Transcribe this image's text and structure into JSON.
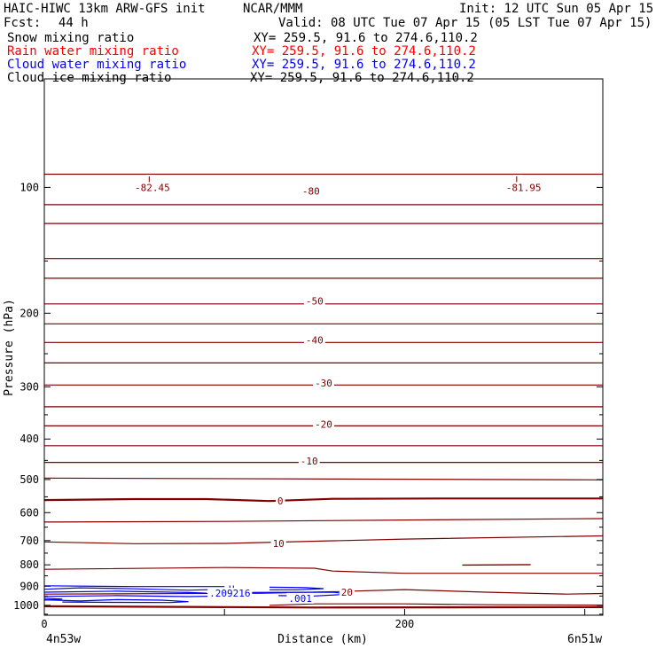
{
  "header": {
    "model": "HAIC-HIWC 13km ARW-GFS init",
    "center": "NCAR/MMM",
    "init": "Init: 12 UTC Sun 05 Apr 15",
    "fcst_label": "Fcst:",
    "fcst_value": "44 h",
    "valid": "Valid: 08 UTC Tue 07 Apr 15 (05 LST Tue 07 Apr 15)",
    "fields": [
      {
        "name": "Snow mixing ratio",
        "xy": "XY= 259.5, 91.6 to 274.6,110.2",
        "color": "#000000"
      },
      {
        "name": "Rain water mixing ratio",
        "xy": "XY= 259.5, 91.6 to 274.6,110.2",
        "color": "#ff0000"
      },
      {
        "name": "Cloud water mixing ratio",
        "xy": "XY= 259.5, 91.6 to 274.6,110.2",
        "color": "#0000ff"
      },
      {
        "name": "Cloud ice mixing ratio",
        "xy": "XY= 259.5, 91.6 to 274.6,110.2",
        "color": "#000000"
      }
    ]
  },
  "chart_data": {
    "type": "line",
    "xlabel": "Distance (km)",
    "ylabel": "Pressure (hPa)",
    "xlim": [
      0,
      310
    ],
    "ylim": [
      1056,
      55
    ],
    "y_scale": "log",
    "x_ticks": [
      0,
      100,
      200,
      300
    ],
    "x_tick_labels": [
      "0",
      "200"
    ],
    "x_tick_label_values": [
      0,
      200
    ],
    "y_ticks": [
      100,
      200,
      300,
      400,
      500,
      600,
      700,
      800,
      900,
      1000
    ],
    "x_endpoint_labels": {
      "left": "4n53w",
      "right": "6n51w"
    },
    "colors": {
      "temperature": "#800000",
      "cloud_water": "#0000ff",
      "axes": "#000000"
    },
    "temperature_contours": [
      {
        "level": -80,
        "points": [
          [
            0,
            93
          ],
          [
            310,
            93
          ]
        ]
      },
      {
        "level": -70,
        "points": [
          [
            0,
            110
          ],
          [
            310,
            110
          ]
        ]
      },
      {
        "level": -65,
        "points": [
          [
            0,
            122
          ],
          [
            310,
            122
          ]
        ]
      },
      {
        "level": -60,
        "points": [
          [
            0,
            148
          ],
          [
            310,
            148
          ]
        ]
      },
      {
        "level": -55,
        "points": [
          [
            0,
            165
          ],
          [
            310,
            165
          ]
        ]
      },
      {
        "level": -50,
        "points": [
          [
            0,
            190
          ],
          [
            310,
            190
          ]
        ]
      },
      {
        "level": -45,
        "points": [
          [
            0,
            212
          ],
          [
            310,
            212
          ]
        ]
      },
      {
        "level": -40,
        "points": [
          [
            0,
            235
          ],
          [
            310,
            235
          ]
        ]
      },
      {
        "level": -35,
        "points": [
          [
            0,
            263
          ],
          [
            310,
            263
          ]
        ]
      },
      {
        "level": -30,
        "points": [
          [
            0,
            297
          ],
          [
            310,
            297
          ]
        ]
      },
      {
        "level": -25,
        "points": [
          [
            0,
            335
          ],
          [
            310,
            335
          ]
        ]
      },
      {
        "level": -20,
        "points": [
          [
            0,
            372
          ],
          [
            310,
            372
          ]
        ]
      },
      {
        "level": -15,
        "points": [
          [
            0,
            415
          ],
          [
            310,
            415
          ]
        ]
      },
      {
        "level": -10,
        "points": [
          [
            0,
            455
          ],
          [
            310,
            455
          ]
        ]
      },
      {
        "level": -5,
        "points": [
          [
            0,
            496
          ],
          [
            310,
            501
          ]
        ]
      },
      {
        "level": 0,
        "points": [
          [
            0,
            560
          ],
          [
            50,
            557
          ],
          [
            90,
            557
          ],
          [
            125,
            563
          ],
          [
            160,
            556
          ],
          [
            220,
            555
          ],
          [
            310,
            555
          ]
        ],
        "bold": true
      },
      {
        "level": 5,
        "points": [
          [
            0,
            632
          ],
          [
            100,
            630
          ],
          [
            200,
            625
          ],
          [
            310,
            620
          ]
        ]
      },
      {
        "level": 10,
        "points": [
          [
            0,
            705
          ],
          [
            50,
            712
          ],
          [
            100,
            711
          ],
          [
            200,
            694
          ],
          [
            310,
            682
          ]
        ]
      },
      {
        "level": 15,
        "points": [
          [
            0,
            820
          ],
          [
            100,
            812
          ],
          [
            150,
            815
          ],
          [
            160,
            828
          ],
          [
            200,
            838
          ],
          [
            310,
            838
          ]
        ]
      },
      {
        "level": 20,
        "points": [
          [
            0,
            940
          ],
          [
            60,
            938
          ],
          [
            120,
            936
          ],
          [
            160,
            928
          ],
          [
            200,
            917
          ],
          [
            245,
            930
          ],
          [
            290,
            940
          ],
          [
            310,
            937
          ]
        ]
      },
      {
        "level": 25,
        "points": [
          [
            125,
            1000
          ],
          [
            150,
            992
          ],
          [
            200,
            992
          ],
          [
            250,
            997
          ],
          [
            310,
            999
          ]
        ]
      },
      {
        "level": 30,
        "points": [
          [
            0,
            1005
          ],
          [
            150,
            1012
          ],
          [
            310,
            1010
          ]
        ],
        "bold": true
      }
    ],
    "small_contour": {
      "level": 15,
      "points": [
        [
          232,
          801
        ],
        [
          270,
          799
        ],
        [
          232,
          801
        ]
      ]
    },
    "cloud_water_contours": [
      {
        "points": [
          [
            0,
            898
          ],
          [
            50,
            902
          ],
          [
            100,
            902
          ]
        ]
      },
      {
        "points": [
          [
            0,
            915
          ],
          [
            20,
            908
          ],
          [
            50,
            913
          ],
          [
            80,
            920
          ],
          [
            100,
            915
          ]
        ]
      },
      {
        "points": [
          [
            0,
            930
          ],
          [
            40,
            925
          ],
          [
            80,
            932
          ],
          [
            90,
            935
          ]
        ]
      },
      {
        "points": [
          [
            0,
            952
          ],
          [
            40,
            948
          ],
          [
            80,
            953
          ],
          [
            100,
            950
          ]
        ]
      },
      {
        "points": [
          [
            125,
            905
          ],
          [
            145,
            907
          ],
          [
            155,
            912
          ],
          [
            140,
            918
          ],
          [
            125,
            918
          ]
        ]
      },
      {
        "points": [
          [
            110,
            932
          ],
          [
            160,
            930
          ],
          [
            170,
            940
          ],
          [
            150,
            950
          ],
          [
            130,
            948
          ]
        ]
      },
      {
        "points": [
          [
            0,
            970
          ],
          [
            20,
            976
          ],
          [
            40,
            969
          ],
          [
            65,
            972
          ],
          [
            80,
            980
          ],
          [
            70,
            985
          ],
          [
            40,
            984
          ],
          [
            10,
            982
          ]
        ]
      },
      {
        "points": [
          [
            0,
            962
          ],
          [
            10,
            966
          ],
          [
            0,
            972
          ]
        ]
      }
    ],
    "annotations": [
      {
        "text": "L",
        "x": 59,
        "y": 96,
        "color": "#800000"
      },
      {
        "text": "-82.45",
        "x": 60,
        "y": 100,
        "color": "#800000"
      },
      {
        "text": "L",
        "x": 263,
        "y": 96,
        "color": "#800000"
      },
      {
        "text": "-81.95",
        "x": 266,
        "y": 100,
        "color": "#800000"
      },
      {
        "text": "-80",
        "x": 148,
        "y": 102,
        "color": "#800000"
      },
      {
        "text": "-50",
        "x": 150,
        "y": 187,
        "color": "#800000"
      },
      {
        "text": "-40",
        "x": 150,
        "y": 232,
        "color": "#800000"
      },
      {
        "text": "-30",
        "x": 155,
        "y": 294,
        "color": "#800000"
      },
      {
        "text": "-20",
        "x": 155,
        "y": 369,
        "color": "#800000"
      },
      {
        "text": "-10",
        "x": 147,
        "y": 451,
        "color": "#800000"
      },
      {
        "text": "0",
        "x": 131,
        "y": 562,
        "color": "#800000"
      },
      {
        "text": "10",
        "x": 130,
        "y": 711,
        "color": "#800000"
      },
      {
        "text": "20",
        "x": 168,
        "y": 929,
        "color": "#800000"
      },
      {
        "text": "H",
        "x": 104,
        "y": 915,
        "color": "#0000ff"
      },
      {
        "text": ".209216",
        "x": 103,
        "y": 935,
        "color": "#0000ff"
      },
      {
        "text": ".001",
        "x": 142,
        "y": 962,
        "color": "#0000ff"
      }
    ]
  }
}
